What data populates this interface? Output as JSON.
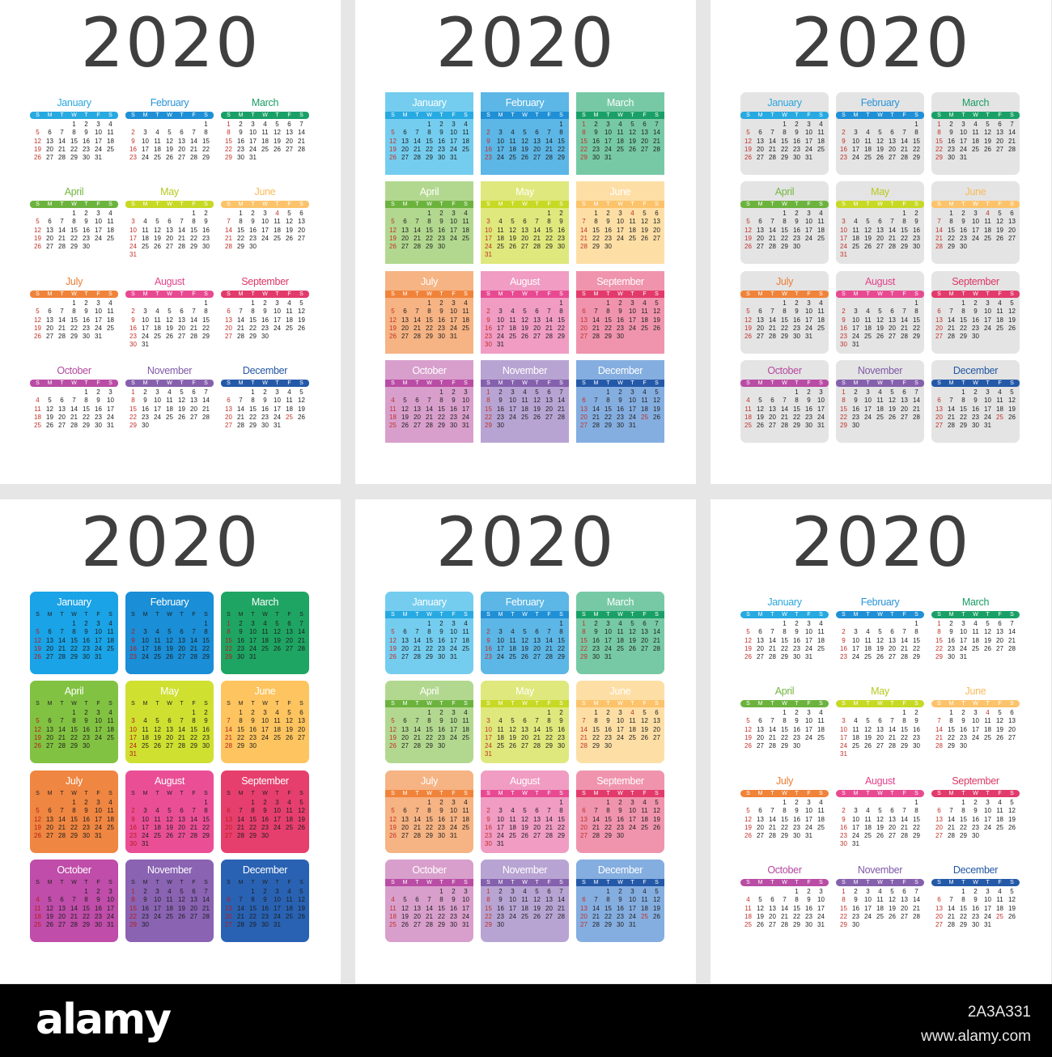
{
  "year": "2020",
  "weekday_letters": [
    "S",
    "M",
    "T",
    "W",
    "T",
    "F",
    "S"
  ],
  "months": [
    {
      "name": "January",
      "offset": 3,
      "days": 31,
      "holidays": [],
      "accent": "#27a9e1",
      "pastel": "#74cdef",
      "solid": "#1aa3e6",
      "name_color": "#2aa7dd"
    },
    {
      "name": "February",
      "offset": 6,
      "days": 29,
      "holidays": [],
      "accent": "#1f8fd6",
      "pastel": "#5cb6e6",
      "solid": "#1a8ed6",
      "name_color": "#2994d8"
    },
    {
      "name": "March",
      "offset": 0,
      "days": 31,
      "holidays": [],
      "accent": "#1aa067",
      "pastel": "#77c9a5",
      "solid": "#1fa563",
      "name_color": "#179c62"
    },
    {
      "name": "April",
      "offset": 3,
      "days": 30,
      "holidays": [],
      "accent": "#6cb33e",
      "pastel": "#b2d88f",
      "solid": "#82c242",
      "name_color": "#73b741"
    },
    {
      "name": "May",
      "offset": 5,
      "days": 31,
      "holidays": [],
      "accent": "#c7d925",
      "pastel": "#dfe87c",
      "solid": "#cfe031",
      "name_color": "#b7c81d"
    },
    {
      "name": "June",
      "offset": 1,
      "days": 30,
      "holidays": [
        4
      ],
      "accent": "#fcc36b",
      "pastel": "#fddfa6",
      "solid": "#fdc45f",
      "name_color": "#f8ba59"
    },
    {
      "name": "July",
      "offset": 3,
      "days": 31,
      "holidays": [],
      "accent": "#f0833a",
      "pastel": "#f6b383",
      "solid": "#ef8641",
      "name_color": "#ec7c33"
    },
    {
      "name": "August",
      "offset": 6,
      "days": 31,
      "holidays": [],
      "accent": "#e84a92",
      "pastel": "#f09cc3",
      "solid": "#ea4f96",
      "name_color": "#e2438c"
    },
    {
      "name": "September",
      "offset": 2,
      "days": 30,
      "holidays": [],
      "accent": "#e23a6b",
      "pastel": "#f094ad",
      "solid": "#e63f6d",
      "name_color": "#dc3666"
    },
    {
      "name": "October",
      "offset": 4,
      "days": 31,
      "holidays": [],
      "accent": "#b94ca4",
      "pastel": "#d89fcc",
      "solid": "#bf4da9",
      "name_color": "#b448a0"
    },
    {
      "name": "November",
      "offset": 0,
      "days": 30,
      "holidays": [],
      "accent": "#8560ad",
      "pastel": "#b8a4d3",
      "solid": "#8a63b3",
      "name_color": "#7f5aa8"
    },
    {
      "name": "December",
      "offset": 2,
      "days": 31,
      "holidays": [
        25
      ],
      "accent": "#2459a8",
      "pastel": "#85aee0",
      "solid": "#2962b3",
      "name_color": "#2457a4"
    }
  ],
  "footer": {
    "logo": "alamy",
    "image_code": "2A3A331",
    "site": "www.alamy.com"
  }
}
